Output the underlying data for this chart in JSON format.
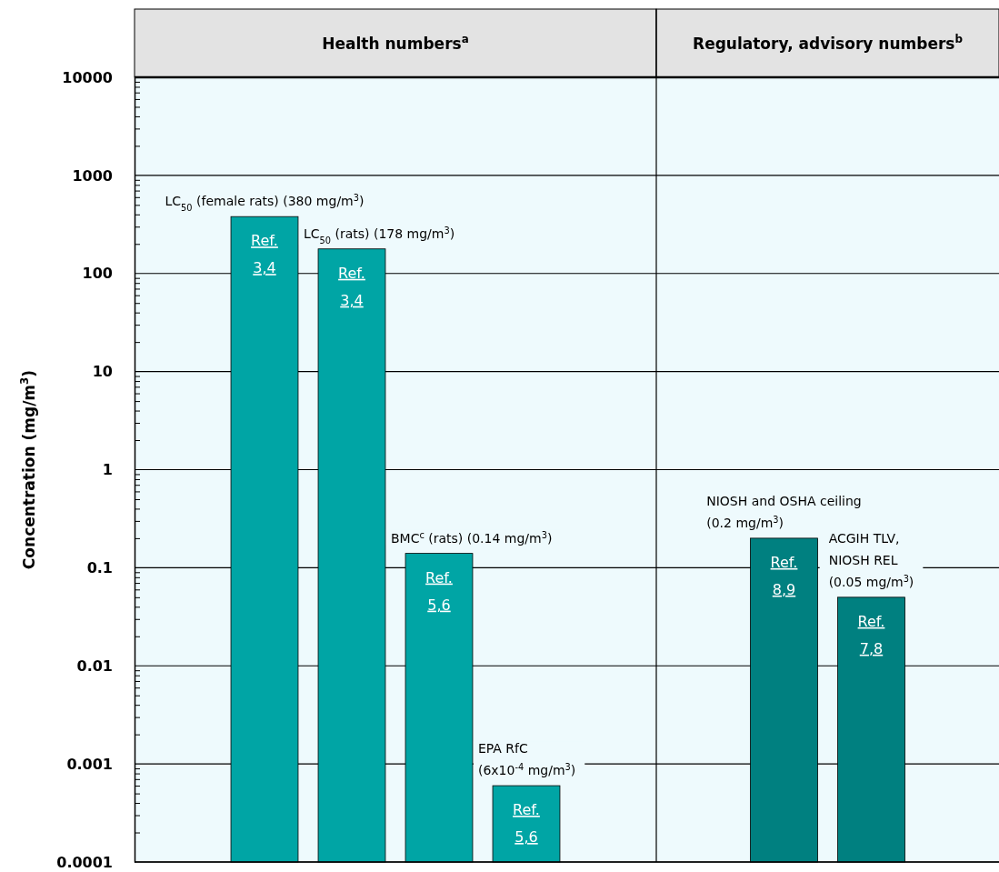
{
  "chart_data": [
    {
      "type": "bar",
      "title": "Health numbers$^{a}$",
      "ylabel": "Concentration (mg/m$^{3}$)",
      "categories": [
        null,
        null,
        null,
        null,
        null,
        null
      ],
      "series": [
        {
          "color": "#00a5a5",
          "values": [
            null,
            380,
            178,
            0.14,
            0.0006,
            null
          ],
          "value_labels": [
            null,
            "LC$_{50}$ (female rats) (380 mg/m$^{3}$)",
            "LC$_{50}$ (rats) (178 mg/m$^{3}$)",
            "BMC$^{c}$ (rats) (0.14 mg/m$^{3}$)",
            "EPA RfC\n(6x10$^{-4}$ mg/m$^{3}$)",
            null
          ]
        }
      ],
      "annotations": [
        "Ref.\n3,4",
        "Ref.\n3,4",
        "Ref.\n5,6",
        "Ref.\n5,6"
      ],
      "log": true,
      "ylim": [
        0.0001,
        10000
      ],
      "yticks": [
        0.0001,
        {
          "value": 0.0002,
          "label": null
        },
        {
          "value": 0.0003,
          "label": null
        },
        {
          "value": 0.0004,
          "label": null
        },
        {
          "value": 0.0005,
          "label": null
        },
        {
          "value": 0.0006,
          "label": null
        },
        {
          "value": 0.0007,
          "label": null
        },
        {
          "value": 0.0008,
          "label": null
        },
        {
          "value": 0.0009,
          "label": null
        },
        0.001,
        {
          "value": 0.002,
          "label": null
        },
        {
          "value": 0.003,
          "label": null
        },
        {
          "value": 0.004,
          "label": null
        },
        {
          "value": 0.005,
          "label": null
        },
        {
          "value": 0.006,
          "label": null
        },
        {
          "value": 0.007,
          "label": null
        },
        {
          "value": 0.008,
          "label": null
        },
        {
          "value": 0.009,
          "label": null
        },
        0.01,
        {
          "value": 0.02,
          "label": null
        },
        {
          "value": 0.03,
          "label": null
        },
        {
          "value": 0.04,
          "label": null
        },
        {
          "value": 0.05,
          "label": null
        },
        {
          "value": 0.06,
          "label": null
        },
        {
          "value": 0.07,
          "label": null
        },
        {
          "value": 0.08,
          "label": null
        },
        {
          "value": 0.09,
          "label": null
        },
        0.1,
        {
          "value": 0.2,
          "label": null
        },
        {
          "value": 0.3,
          "label": null
        },
        {
          "value": 0.4,
          "label": null
        },
        {
          "value": 0.5,
          "label": null
        },
        {
          "value": 0.6,
          "label": null
        },
        {
          "value": 0.7,
          "label": null
        },
        {
          "value": 0.8,
          "label": null
        },
        {
          "value": 0.9,
          "label": null
        },
        1,
        {
          "value": 2,
          "label": null
        },
        {
          "value": 3,
          "label": null
        },
        {
          "value": 4,
          "label": null
        },
        {
          "value": 5,
          "label": null
        },
        {
          "value": 6,
          "label": null
        },
        {
          "value": 7,
          "label": null
        },
        {
          "value": 8,
          "label": null
        },
        {
          "value": 9,
          "label": null
        },
        10,
        {
          "value": 20,
          "label": null
        },
        {
          "value": 30,
          "label": null
        },
        {
          "value": 40,
          "label": null
        },
        {
          "value": 50,
          "label": null
        },
        {
          "value": 60,
          "label": null
        },
        {
          "value": 70,
          "label": null
        },
        {
          "value": 80,
          "label": null
        },
        {
          "value": 90,
          "label": null
        },
        100,
        {
          "value": 200,
          "label": null
        },
        {
          "value": 300,
          "label": null
        },
        {
          "value": 400,
          "label": null
        },
        {
          "value": 500,
          "label": null
        },
        {
          "value": 600,
          "label": null
        },
        {
          "value": 700,
          "label": null
        },
        {
          "value": 800,
          "label": null
        },
        {
          "value": 900,
          "label": null
        },
        1000,
        {
          "value": 2000,
          "label": null
        },
        {
          "value": 3000,
          "label": null
        },
        {
          "value": 4000,
          "label": null
        },
        {
          "value": 5000,
          "label": null
        },
        {
          "value": 6000,
          "label": null
        },
        {
          "value": 7000,
          "label": null
        },
        {
          "value": 8000,
          "label": null
        },
        {
          "value": 9000,
          "label": null
        },
        10000
      ],
      "grid": "y"
    },
    {
      "type": "bar",
      "title": "Regulatory, advisory numbers$^{b}$",
      "categories": [
        null,
        null
      ],
      "series": [
        {
          "color": "#008080",
          "values": [
            0.2,
            0.05
          ],
          "value_labels": [
            "NIOSH and OSHA ceiling\n(0.2 mg/m$^{3}$)",
            "ACGIH TLV,\nNIOSH REL\n(0.05 mg/m$^{3}$)"
          ]
        }
      ],
      "annotations": [
        "Ref.\n8,9",
        "Ref.\n7,8"
      ],
      "log": true,
      "ylim": [
        0.0001,
        10000
      ],
      "yticks": [
        0.0001,
        0.001,
        0.01,
        0.1,
        1,
        10,
        100,
        1000,
        10000
      ],
      "grid": "y",
      "tick_labels": false
    }
  ]
}
